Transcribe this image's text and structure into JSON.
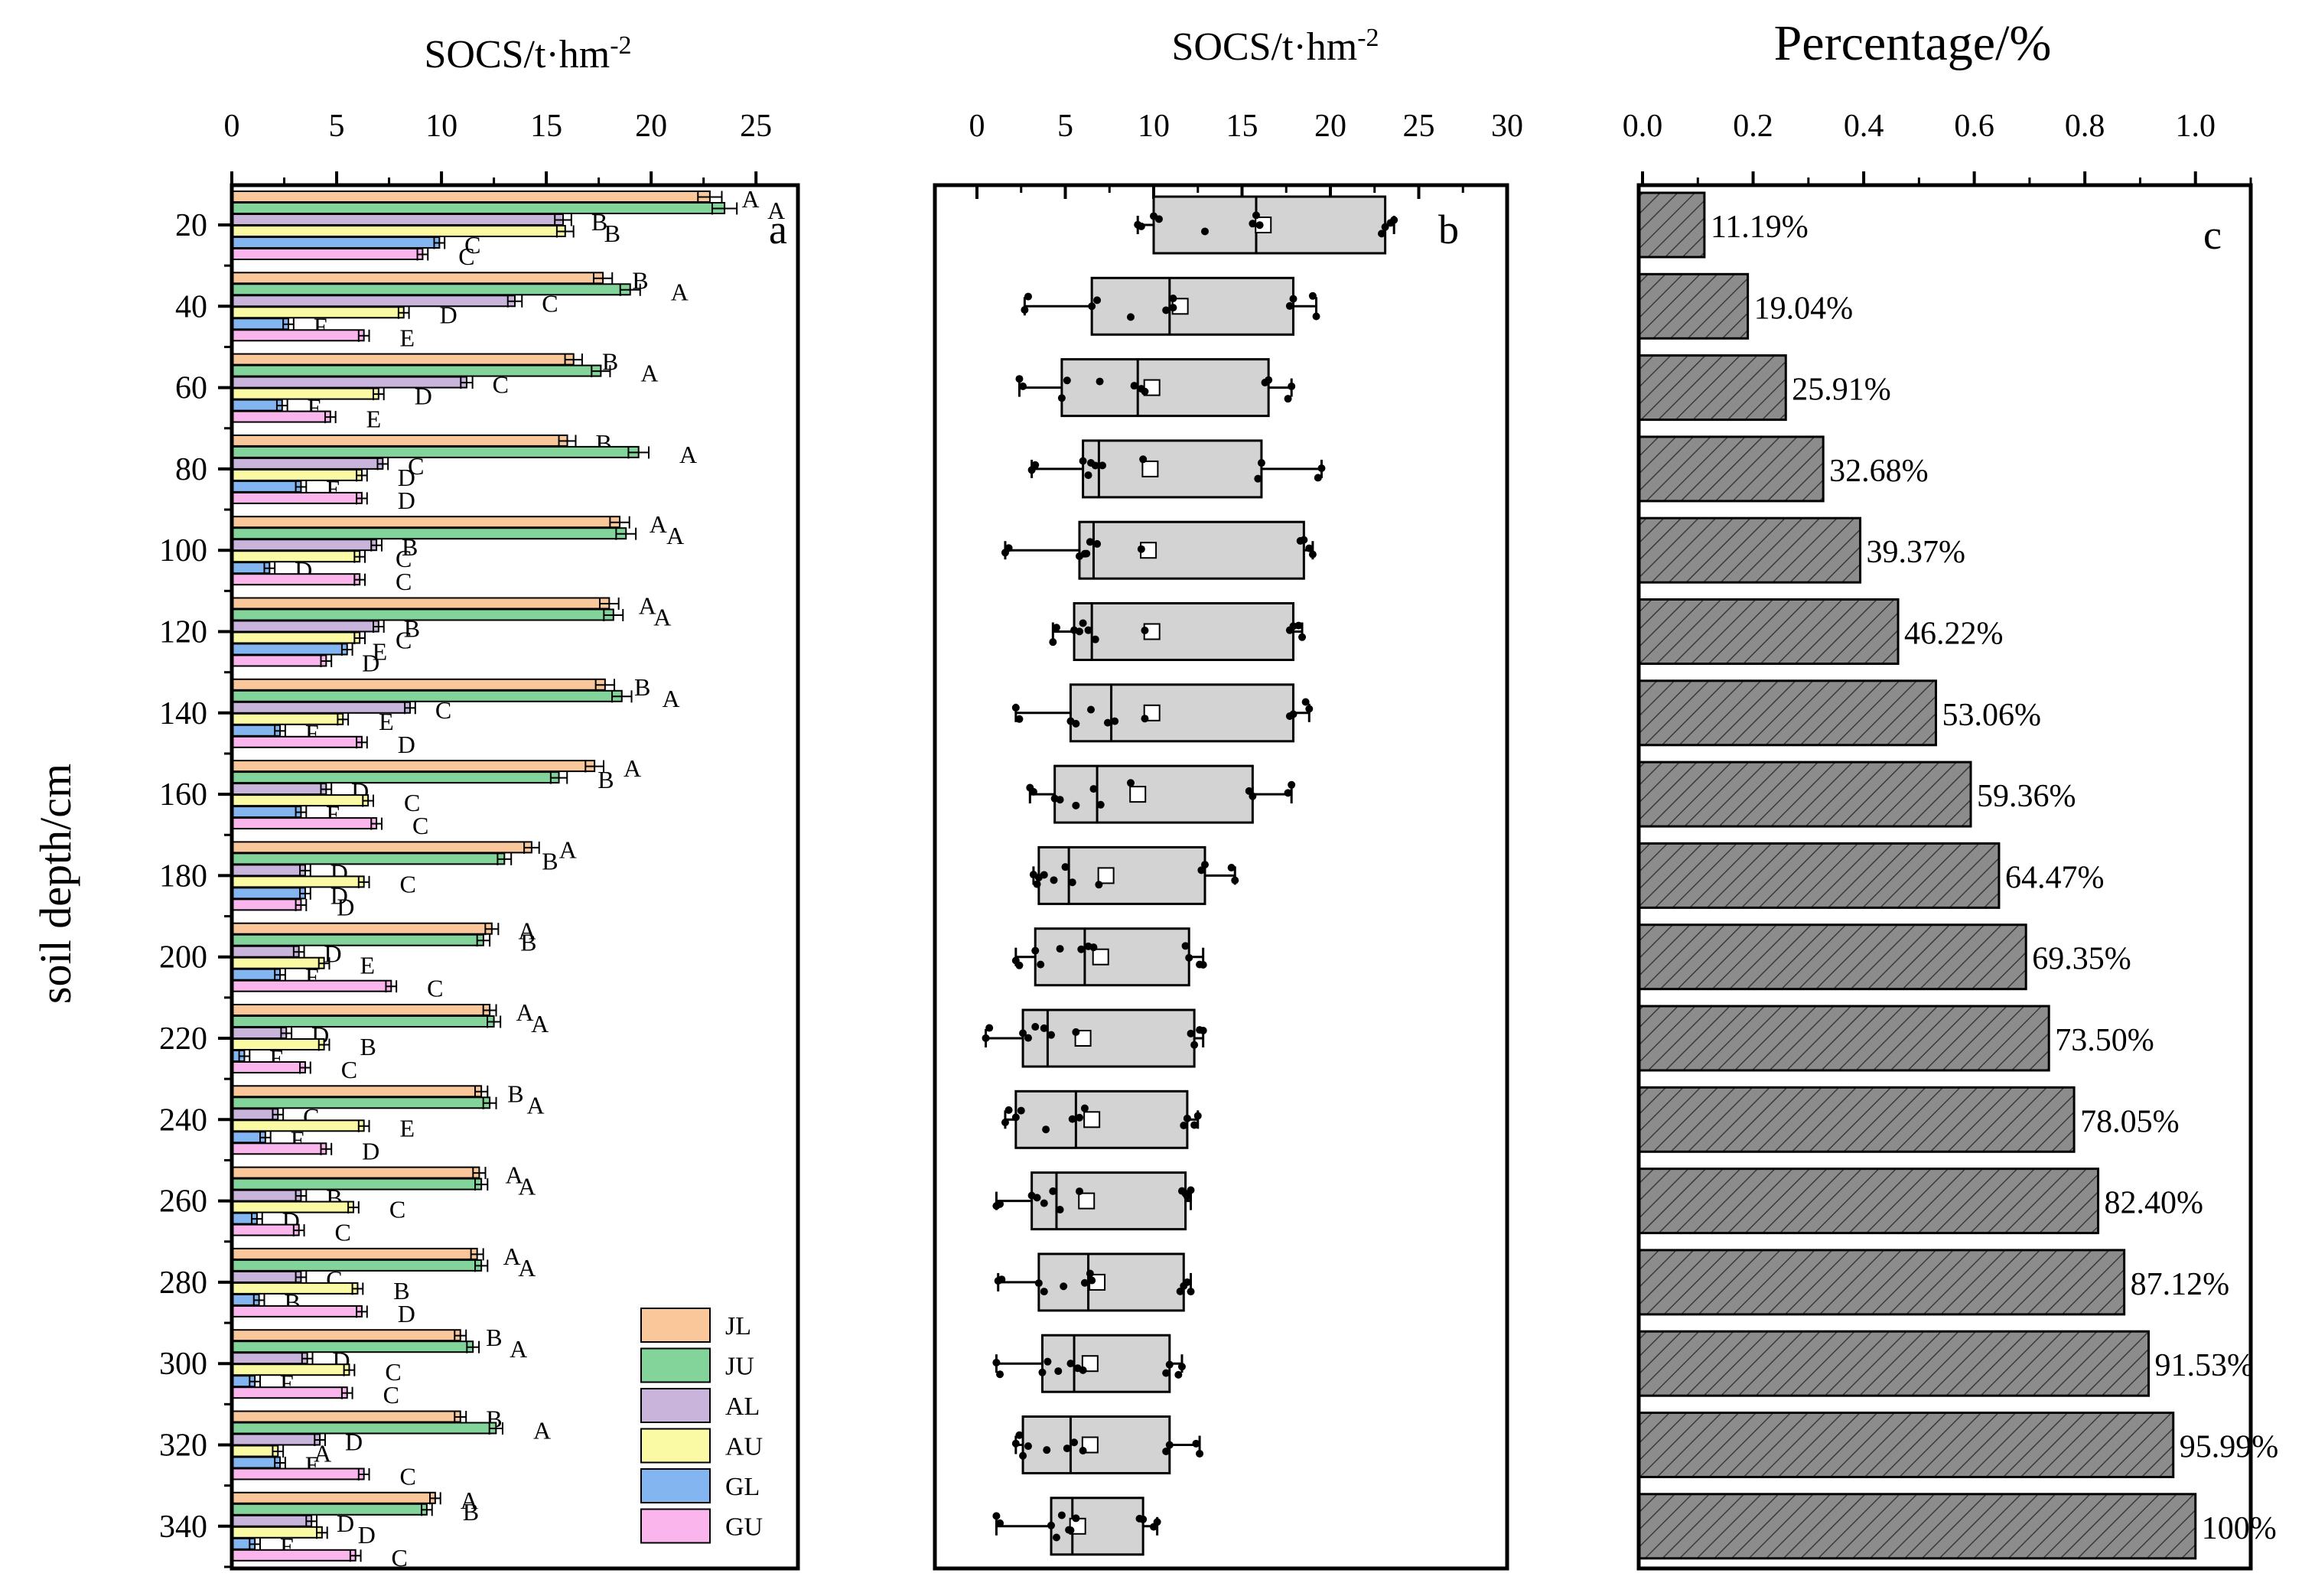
{
  "chart_data": [
    {
      "type": "bar",
      "panel": "a",
      "title": "",
      "xlabel": "SOCS/t·hm-2",
      "xlabel_sup": "-2",
      "xlabel_base": "SOCS/t·hm",
      "ylabel": "soil depth/cm",
      "xlim": [
        0,
        27
      ],
      "xticks": [
        0,
        5,
        10,
        15,
        20,
        25
      ],
      "y_ticks": [
        20,
        40,
        60,
        80,
        100,
        120,
        140,
        160,
        180,
        200,
        220,
        240,
        260,
        280,
        300,
        320,
        340
      ],
      "legend": {
        "position": "bottom-right"
      },
      "series": [
        {
          "name": "JL",
          "color": "#f9c79a",
          "values": [
            22.8,
            17.7,
            16.3,
            16.0,
            18.5,
            18.0,
            17.8,
            17.3,
            14.3,
            12.4,
            12.3,
            11.9,
            11.8,
            11.7,
            10.9,
            10.9,
            9.7
          ]
        },
        {
          "name": "JU",
          "color": "#82d49b",
          "values": [
            23.5,
            19.0,
            17.6,
            19.4,
            18.8,
            18.2,
            18.6,
            15.6,
            13.0,
            12.0,
            12.5,
            12.3,
            11.9,
            11.9,
            11.5,
            12.6,
            9.3
          ]
        },
        {
          "name": "AL",
          "color": "#c9b4db",
          "values": [
            15.8,
            13.5,
            11.2,
            7.2,
            6.9,
            7.0,
            8.5,
            4.5,
            3.5,
            3.2,
            2.6,
            2.2,
            3.3,
            3.3,
            3.6,
            4.2,
            3.8
          ]
        },
        {
          "name": "AU",
          "color": "#fafaa4",
          "values": [
            15.9,
            8.2,
            7.0,
            6.2,
            6.1,
            6.1,
            5.3,
            6.5,
            6.3,
            4.4,
            4.4,
            6.3,
            5.8,
            6.0,
            5.6,
            2.2,
            4.3
          ]
        },
        {
          "name": "GL",
          "color": "#83b6f0",
          "values": [
            9.9,
            2.7,
            2.4,
            3.3,
            1.8,
            5.5,
            2.3,
            3.3,
            3.5,
            2.3,
            0.6,
            1.6,
            1.2,
            1.3,
            1.1,
            2.3,
            1.1
          ]
        },
        {
          "name": "GU",
          "color": "#fab6ec",
          "values": [
            9.1,
            6.3,
            4.7,
            6.2,
            6.1,
            4.5,
            6.2,
            6.9,
            3.3,
            7.6,
            3.5,
            4.5,
            3.2,
            6.2,
            5.5,
            6.3,
            5.9
          ]
        }
      ],
      "letters": [
        [
          "A",
          "A",
          "B",
          "B",
          "C",
          "C"
        ],
        [
          "B",
          "A",
          "C",
          "D",
          "F",
          "E"
        ],
        [
          "B",
          "A",
          "C",
          "D",
          "F",
          "E"
        ],
        [
          "B",
          "A",
          "C",
          "D",
          "E",
          "D"
        ],
        [
          "A",
          "A",
          "B",
          "C",
          "D",
          "C"
        ],
        [
          "A",
          "A",
          "B",
          "C",
          "E",
          "D"
        ],
        [
          "B",
          "A",
          "C",
          "E",
          "F",
          "D"
        ],
        [
          "A",
          "B",
          "D",
          "C",
          "E",
          "C"
        ],
        [
          "A",
          "B",
          "D",
          "C",
          "D",
          "D"
        ],
        [
          "A",
          "B",
          "D",
          "E",
          "F",
          "C"
        ],
        [
          "A",
          "A",
          "D",
          "B",
          "E",
          "C"
        ],
        [
          "B",
          "A",
          "C",
          "E",
          "F",
          "D"
        ],
        [
          "A",
          "A",
          "B",
          "C",
          "D",
          "C"
        ],
        [
          "A",
          "A",
          "C",
          "B",
          "B",
          "D"
        ],
        [
          "B",
          "A",
          "D",
          "C",
          "E",
          "C"
        ],
        [
          "B",
          "A",
          "D",
          "A",
          "E",
          "C"
        ],
        [
          "A",
          "B",
          "D",
          "D",
          "E",
          "C"
        ]
      ]
    },
    {
      "type": "box",
      "panel": "b",
      "xlabel": "SOCS/t·hm-2",
      "xlabel_sup": "-2",
      "xlabel_base": "SOCS/t·hm",
      "xlim": [
        0,
        30
      ],
      "xticks": [
        0,
        5,
        10,
        15,
        20,
        25,
        30
      ],
      "categories": [
        20,
        40,
        60,
        80,
        100,
        120,
        140,
        160,
        180,
        200,
        220,
        240,
        260,
        280,
        300,
        320,
        340
      ],
      "boxes": [
        {
          "min": 9.1,
          "q1": 10.0,
          "median": 15.8,
          "mean": 16.2,
          "q3": 23.1,
          "max": 23.6
        },
        {
          "min": 2.7,
          "q1": 6.5,
          "median": 10.9,
          "mean": 11.5,
          "q3": 17.9,
          "max": 19.2
        },
        {
          "min": 2.4,
          "q1": 4.8,
          "median": 9.1,
          "mean": 9.9,
          "q3": 16.5,
          "max": 17.8
        },
        {
          "min": 3.1,
          "q1": 6.0,
          "median": 6.9,
          "mean": 9.8,
          "q3": 16.1,
          "max": 19.5
        },
        {
          "min": 1.6,
          "q1": 5.8,
          "median": 6.6,
          "mean": 9.7,
          "q3": 18.5,
          "max": 19.0
        },
        {
          "min": 4.3,
          "q1": 5.5,
          "median": 6.5,
          "mean": 9.9,
          "q3": 17.9,
          "max": 18.4
        },
        {
          "min": 2.2,
          "q1": 5.3,
          "median": 7.6,
          "mean": 9.9,
          "q3": 17.9,
          "max": 18.8
        },
        {
          "min": 3.0,
          "q1": 4.4,
          "median": 6.8,
          "mean": 9.1,
          "q3": 15.6,
          "max": 17.8
        },
        {
          "min": 3.2,
          "q1": 3.5,
          "median": 5.2,
          "mean": 7.3,
          "q3": 12.9,
          "max": 14.6
        },
        {
          "min": 2.2,
          "q1": 3.3,
          "median": 6.1,
          "mean": 7.0,
          "q3": 12.0,
          "max": 12.8
        },
        {
          "min": 0.5,
          "q1": 2.6,
          "median": 4.0,
          "mean": 6.0,
          "q3": 12.3,
          "max": 12.8
        },
        {
          "min": 1.6,
          "q1": 2.2,
          "median": 5.6,
          "mean": 6.5,
          "q3": 11.9,
          "max": 12.5
        },
        {
          "min": 1.1,
          "q1": 3.1,
          "median": 4.5,
          "mean": 6.2,
          "q3": 11.8,
          "max": 12.1
        },
        {
          "min": 1.2,
          "q1": 3.5,
          "median": 6.3,
          "mean": 6.8,
          "q3": 11.7,
          "max": 12.1
        },
        {
          "min": 1.1,
          "q1": 3.7,
          "median": 5.5,
          "mean": 6.4,
          "q3": 10.9,
          "max": 11.6
        },
        {
          "min": 2.2,
          "q1": 2.6,
          "median": 5.3,
          "mean": 6.4,
          "q3": 10.9,
          "max": 12.6
        },
        {
          "min": 1.1,
          "q1": 4.2,
          "median": 5.4,
          "mean": 5.7,
          "q3": 9.4,
          "max": 10.2
        }
      ]
    },
    {
      "type": "bar",
      "panel": "c",
      "xlabel": "Percentage/%",
      "xlim": [
        0,
        1.1
      ],
      "xticks": [
        "0.0",
        "0.2",
        "0.4",
        "0.6",
        "0.8",
        "1.0"
      ],
      "categories": [
        20,
        40,
        60,
        80,
        100,
        120,
        140,
        160,
        180,
        200,
        220,
        240,
        260,
        280,
        300,
        320,
        340
      ],
      "values": [
        0.1119,
        0.1904,
        0.2591,
        0.3268,
        0.3937,
        0.4622,
        0.5306,
        0.5936,
        0.6447,
        0.6935,
        0.735,
        0.7805,
        0.824,
        0.8712,
        0.9153,
        0.9599,
        1.0
      ],
      "labels": [
        "11.19%",
        "19.04%",
        "25.91%",
        "32.68%",
        "39.37%",
        "46.22%",
        "53.06%",
        "59.36%",
        "64.47%",
        "69.35%",
        "73.50%",
        "78.05%",
        "82.40%",
        "87.12%",
        "91.53%",
        "95.99%",
        "100%"
      ],
      "bar_color": "#8c8c8c"
    }
  ]
}
